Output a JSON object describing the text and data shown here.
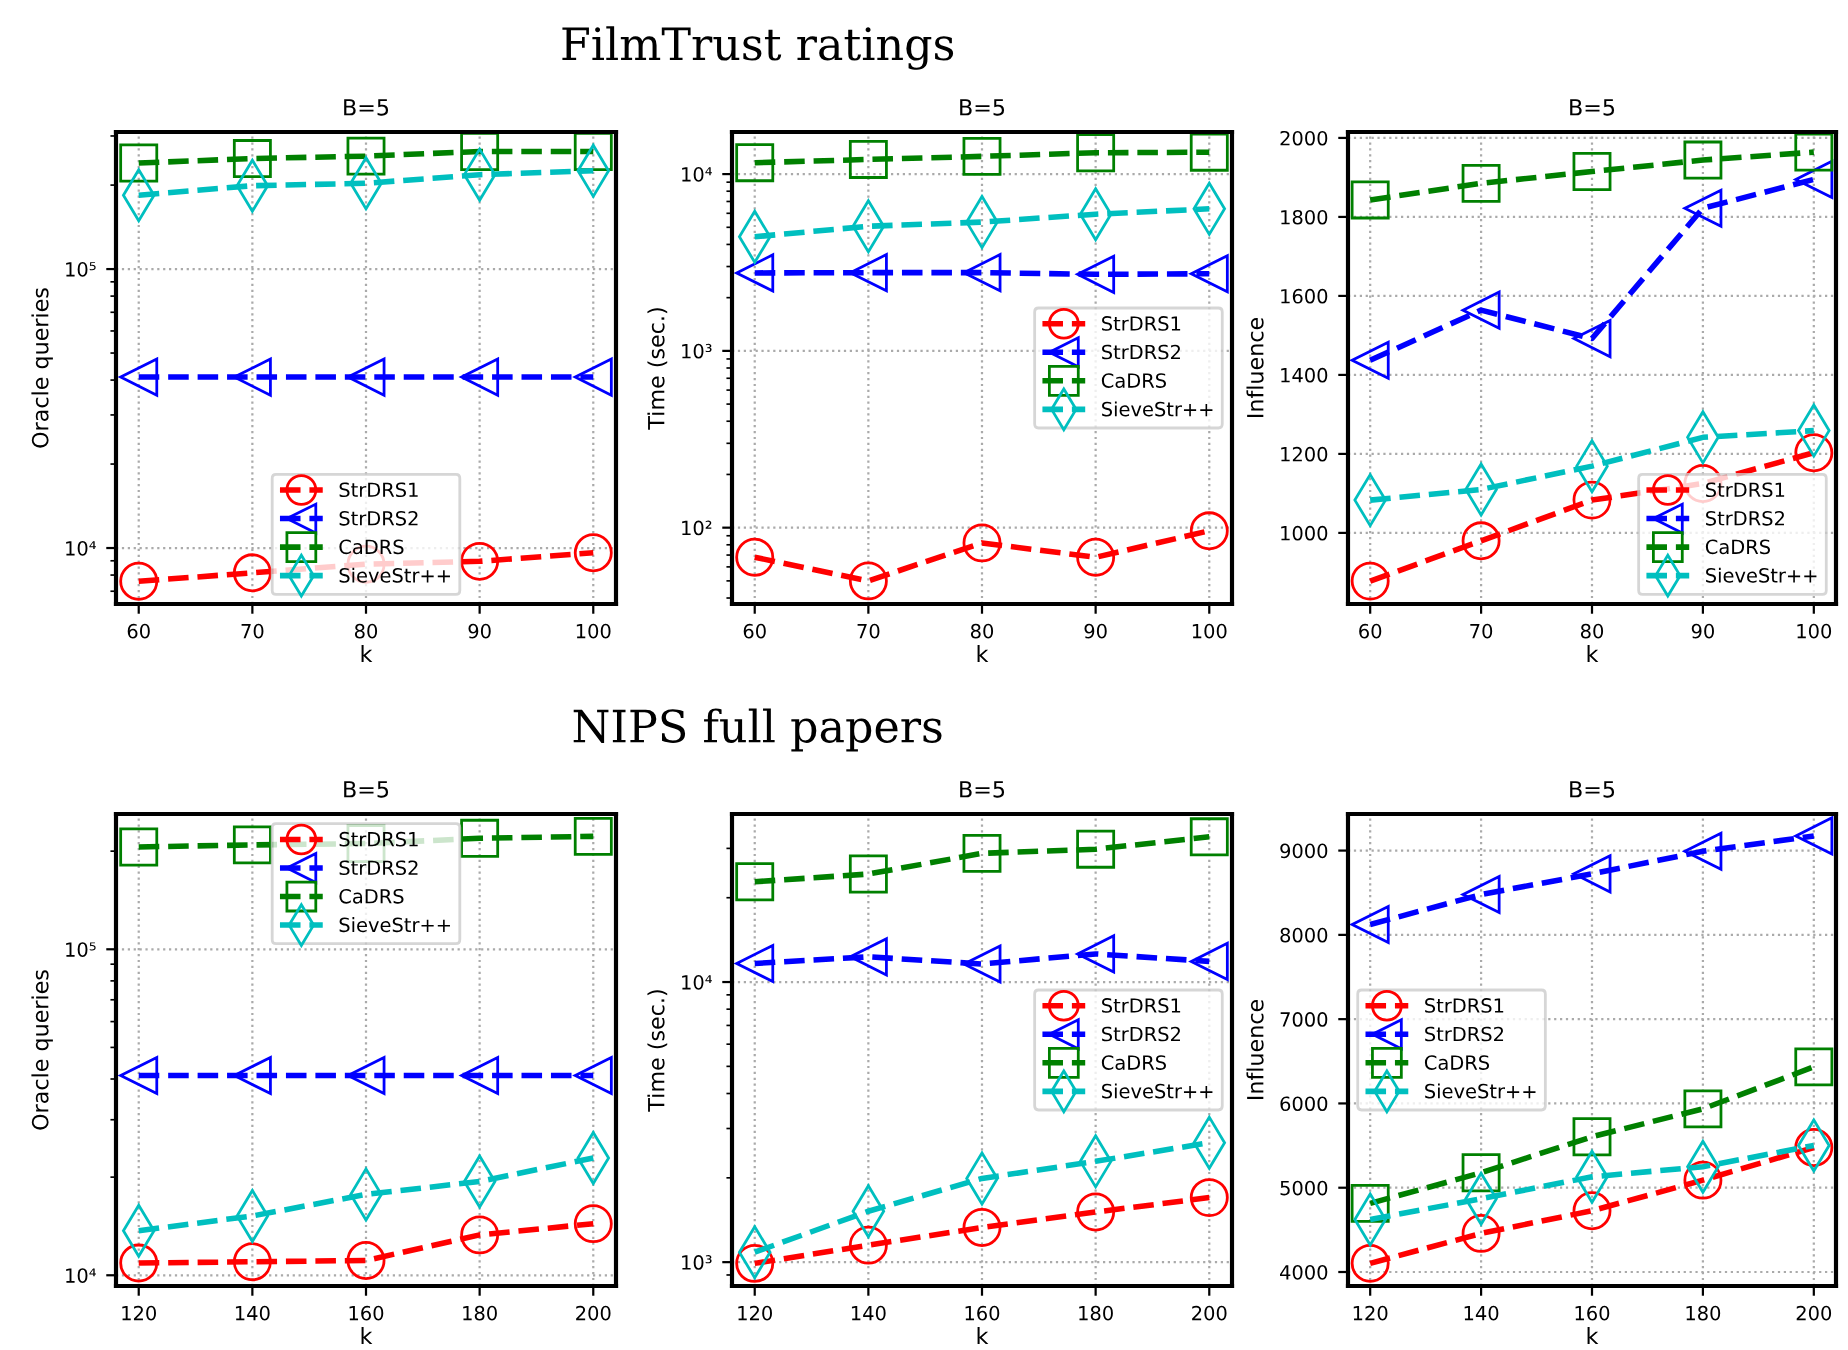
{
  "chart_data": [
    {
      "type": "line",
      "title": "B=5",
      "xlabel": "k",
      "ylabel": "Oracle queries",
      "annotations": [
        "FilmTrust ratings"
      ],
      "x": [
        60,
        70,
        80,
        90,
        100
      ],
      "xlim": [
        58,
        102
      ],
      "xticks": [
        60,
        70,
        80,
        90,
        100
      ],
      "log": "y",
      "ylim": [
        6300,
        310000
      ],
      "yticks": [
        {
          "value": 10000,
          "label": "10⁴"
        },
        {
          "value": 100000,
          "label": "10⁵"
        }
      ],
      "grid": true,
      "legend": "bottom",
      "line_style": "dashed",
      "series": [
        {
          "name": "StrDRS1",
          "color": "#ff0000",
          "marker": "circle",
          "values": [
            7600,
            8150,
            8750,
            8960,
            9620
          ]
        },
        {
          "name": "StrDRS2",
          "color": "#0000ff",
          "marker": "triangle",
          "values": [
            41000,
            41000,
            41000,
            41000,
            41000
          ]
        },
        {
          "name": "CaDRS",
          "color": "#008000",
          "marker": "square",
          "values": [
            240000,
            249000,
            254000,
            264000,
            264000
          ]
        },
        {
          "name": "SieveStr++",
          "color": "#00bfbf",
          "marker": "diamond",
          "values": [
            184000,
            199000,
            203000,
            218000,
            225000
          ]
        }
      ]
    },
    {
      "type": "line",
      "title": "B=5",
      "xlabel": "k",
      "ylabel": "Time (sec.)",
      "x": [
        60,
        70,
        80,
        90,
        100
      ],
      "xlim": [
        58,
        102
      ],
      "xticks": [
        60,
        70,
        80,
        90,
        100
      ],
      "log": "y",
      "ylim": [
        37,
        17300
      ],
      "yticks": [
        {
          "value": 100,
          "label": "10²"
        },
        {
          "value": 1000,
          "label": "10³"
        },
        {
          "value": 10000,
          "label": "10⁴"
        }
      ],
      "grid": true,
      "legend": "right",
      "line_style": "dashed",
      "series": [
        {
          "name": "StrDRS1",
          "color": "#ff0000",
          "marker": "circle",
          "values": [
            68,
            50,
            82,
            68,
            96
          ]
        },
        {
          "name": "StrDRS2",
          "color": "#0000ff",
          "marker": "triangle",
          "values": [
            2760,
            2770,
            2770,
            2710,
            2730
          ]
        },
        {
          "name": "CaDRS",
          "color": "#008000",
          "marker": "square",
          "values": [
            11600,
            12100,
            12600,
            13200,
            13300
          ]
        },
        {
          "name": "SieveStr++",
          "color": "#00bfbf",
          "marker": "diamond",
          "values": [
            4420,
            5070,
            5350,
            5930,
            6360
          ]
        }
      ]
    },
    {
      "type": "line",
      "title": "B=5",
      "xlabel": "k",
      "ylabel": "Influence",
      "x": [
        60,
        70,
        80,
        90,
        100
      ],
      "xlim": [
        58,
        102
      ],
      "xticks": [
        60,
        70,
        80,
        90,
        100
      ],
      "ylim": [
        820,
        2015
      ],
      "yticks": [
        1000,
        1200,
        1400,
        1600,
        1800,
        2000
      ],
      "grid": true,
      "legend": "bottom right",
      "line_style": "dashed",
      "series": [
        {
          "name": "StrDRS1",
          "color": "#ff0000",
          "marker": "circle",
          "values": [
            878,
            980,
            1083,
            1125,
            1203
          ]
        },
        {
          "name": "StrDRS2",
          "color": "#0000ff",
          "marker": "triangle",
          "values": [
            1437,
            1564,
            1492,
            1822,
            1895
          ]
        },
        {
          "name": "CaDRS",
          "color": "#008000",
          "marker": "square",
          "values": [
            1843,
            1885,
            1915,
            1944,
            1964
          ]
        },
        {
          "name": "SieveStr++",
          "color": "#00bfbf",
          "marker": "diamond",
          "values": [
            1083,
            1110,
            1169,
            1242,
            1259
          ]
        }
      ]
    },
    {
      "type": "line",
      "title": "B=5",
      "xlabel": "k",
      "ylabel": "Oracle queries",
      "annotations": [
        "NIPS full papers"
      ],
      "x": [
        120,
        140,
        160,
        180,
        200
      ],
      "xlim": [
        116,
        204
      ],
      "xticks": [
        120,
        140,
        160,
        180,
        200
      ],
      "log": "y",
      "ylim": [
        9270,
        260000
      ],
      "yticks": [
        {
          "value": 10000,
          "label": "10⁴"
        },
        {
          "value": 100000,
          "label": "10⁵"
        }
      ],
      "grid": true,
      "legend": "top",
      "line_style": "dashed",
      "series": [
        {
          "name": "StrDRS1",
          "color": "#ff0000",
          "marker": "circle",
          "values": [
            10900,
            11000,
            11100,
            13300,
            14400
          ]
        },
        {
          "name": "StrDRS2",
          "color": "#0000ff",
          "marker": "triangle",
          "values": [
            41000,
            41000,
            41000,
            41000,
            41000
          ]
        },
        {
          "name": "CaDRS",
          "color": "#008000",
          "marker": "square",
          "values": [
            206000,
            209000,
            211000,
            219000,
            222000
          ]
        },
        {
          "name": "SieveStr++",
          "color": "#00bfbf",
          "marker": "diamond",
          "values": [
            13700,
            15200,
            17700,
            19400,
            22900
          ]
        }
      ]
    },
    {
      "type": "line",
      "title": "B=5",
      "xlabel": "k",
      "ylabel": "Time (sec.)",
      "x": [
        120,
        140,
        160,
        180,
        200
      ],
      "xlim": [
        116,
        204
      ],
      "xticks": [
        120,
        140,
        160,
        180,
        200
      ],
      "log": "y",
      "ylim": [
        822,
        39800
      ],
      "yticks": [
        {
          "value": 1000,
          "label": "10³"
        },
        {
          "value": 10000,
          "label": "10⁴"
        }
      ],
      "grid": true,
      "legend": "right",
      "line_style": "dashed",
      "series": [
        {
          "name": "StrDRS1",
          "color": "#ff0000",
          "marker": "circle",
          "values": [
            990,
            1150,
            1330,
            1510,
            1700
          ]
        },
        {
          "name": "StrDRS2",
          "color": "#0000ff",
          "marker": "triangle",
          "values": [
            11650,
            12300,
            11600,
            12600,
            11850
          ]
        },
        {
          "name": "CaDRS",
          "color": "#008000",
          "marker": "square",
          "values": [
            22800,
            24300,
            28800,
            29800,
            33000
          ]
        },
        {
          "name": "SieveStr++",
          "color": "#00bfbf",
          "marker": "diamond",
          "values": [
            1085,
            1520,
            1990,
            2290,
            2670
          ]
        }
      ]
    },
    {
      "type": "line",
      "title": "B=5",
      "xlabel": "k",
      "ylabel": "Influence",
      "x": [
        120,
        140,
        160,
        180,
        200
      ],
      "xlim": [
        116,
        204
      ],
      "xticks": [
        120,
        140,
        160,
        180,
        200
      ],
      "ylim": [
        3834,
        9434
      ],
      "yticks": [
        4000,
        5000,
        6000,
        7000,
        8000,
        9000
      ],
      "grid": true,
      "legend": "left",
      "line_style": "dashed",
      "series": [
        {
          "name": "StrDRS1",
          "color": "#ff0000",
          "marker": "circle",
          "values": [
            4103,
            4458,
            4727,
            5090,
            5477
          ]
        },
        {
          "name": "StrDRS2",
          "color": "#0000ff",
          "marker": "triangle",
          "values": [
            8123,
            8479,
            8724,
            8992,
            9174
          ]
        },
        {
          "name": "CaDRS",
          "color": "#008000",
          "marker": "square",
          "values": [
            4814,
            5178,
            5605,
            5936,
            6434
          ]
        },
        {
          "name": "SieveStr++",
          "color": "#00bfbf",
          "marker": "diamond",
          "values": [
            4624,
            4869,
            5130,
            5249,
            5501
          ]
        }
      ]
    }
  ]
}
